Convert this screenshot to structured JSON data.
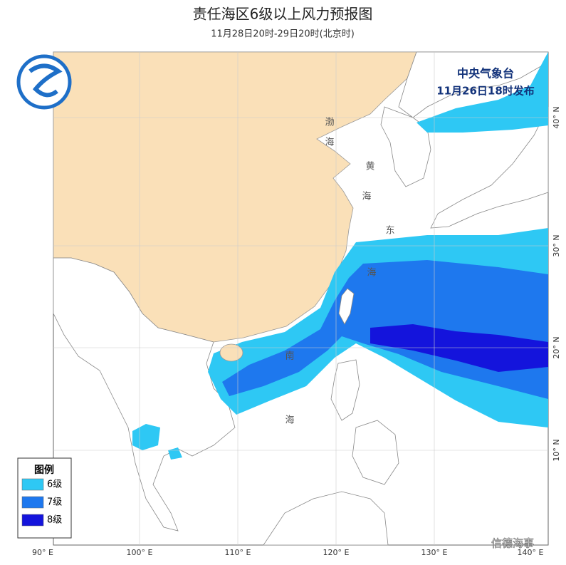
{
  "header": {
    "title": "责任海区6级以上风力预报图",
    "subtitle": "11月28日20时-29日20时(北京时)"
  },
  "issuer": {
    "name": "中央气象台",
    "time": "11月26日18时发布"
  },
  "legend": {
    "title": "图例",
    "items": [
      {
        "label": "6级",
        "color": "#2ec8f4"
      },
      {
        "label": "7级",
        "color": "#1e78ee"
      },
      {
        "label": "8级",
        "color": "#1414dc"
      }
    ]
  },
  "axes": {
    "longitude": [
      "90° E",
      "100° E",
      "110° E",
      "120° E",
      "130° E",
      "140° E"
    ],
    "latitude": [
      "40° N",
      "30° N",
      "20° N",
      "10° N"
    ]
  },
  "sea_labels": [
    "渤",
    "海",
    "黄",
    "海",
    "东",
    "海",
    "南",
    "海"
  ],
  "watermark": "信德海事"
}
